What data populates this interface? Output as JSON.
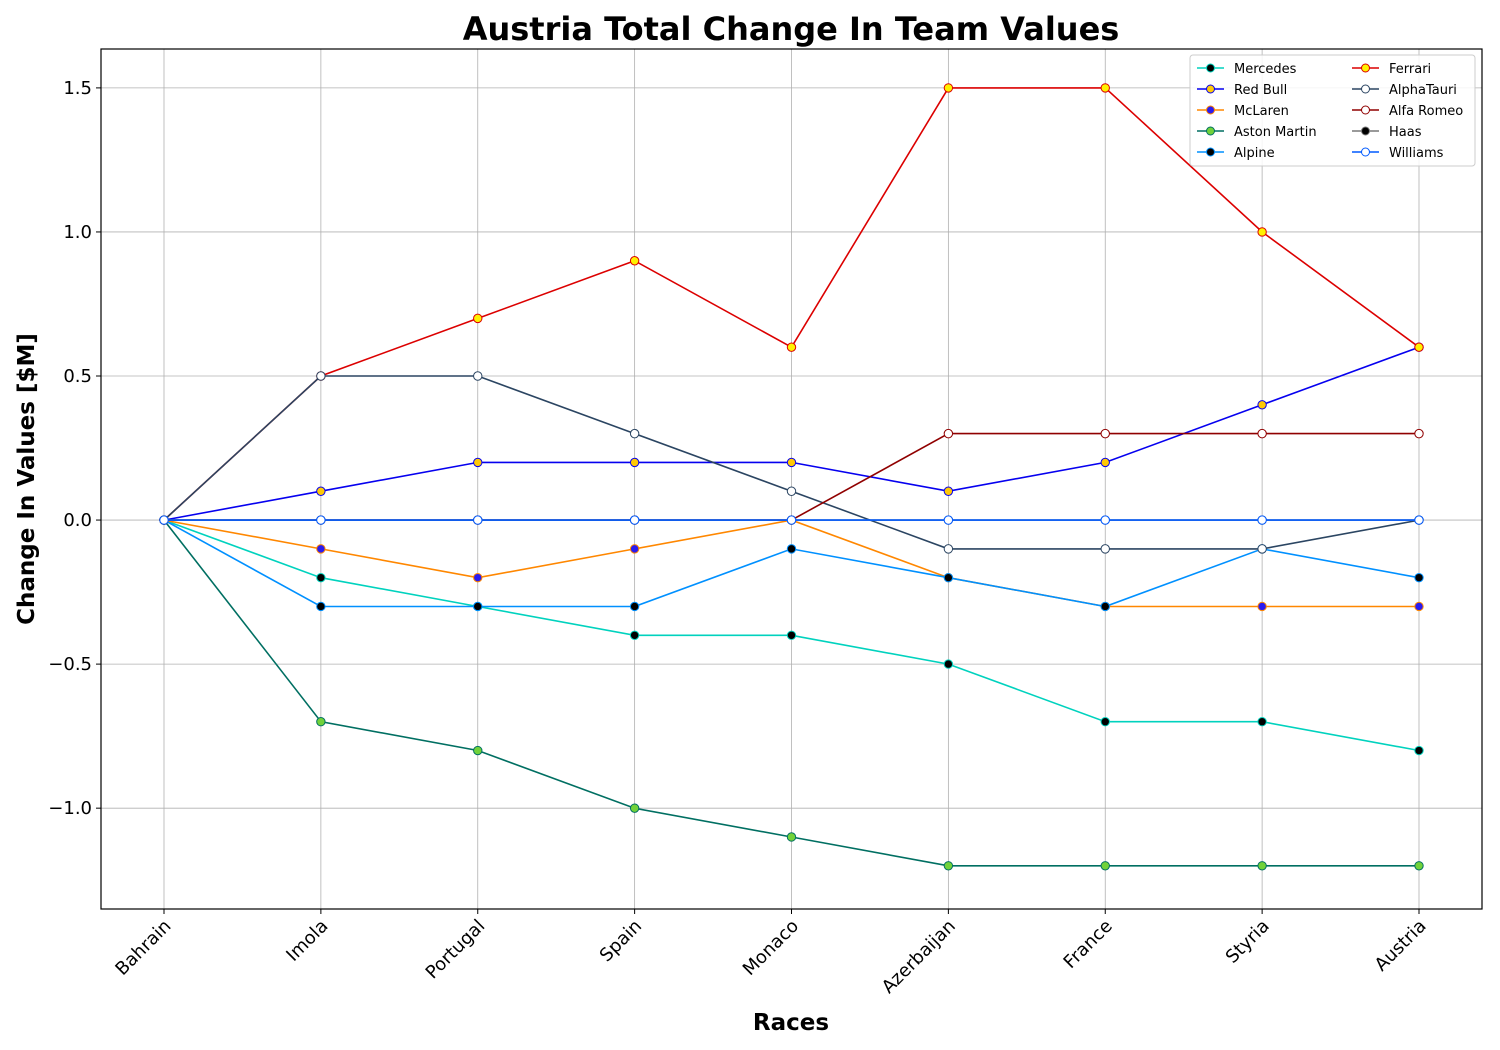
{
  "chart_data": {
    "type": "line",
    "title": "Austria Total Change In Team Values",
    "xlabel": "Races",
    "ylabel": "Change In Values [$M]",
    "categories": [
      "Bahrain",
      "Imola",
      "Portugal",
      "Spain",
      "Monaco",
      "Azerbaijan",
      "France",
      "Styria",
      "Austria"
    ],
    "ylim": [
      -1.35,
      1.635
    ],
    "yticks": [
      -1.0,
      -0.5,
      0.0,
      0.5,
      1.0,
      1.5
    ],
    "ytick_labels": [
      "−1.0",
      "−0.5",
      "0.0",
      "0.5",
      "1.0",
      "1.5"
    ],
    "grid": true,
    "legend_position": "top-right",
    "legend_columns": 2,
    "series": [
      {
        "name": "Mercedes",
        "color": "#00d2be",
        "marker_fill": "#000000",
        "marker_edge": "#00d2be",
        "values": [
          0,
          -0.2,
          -0.3,
          -0.4,
          -0.4,
          -0.5,
          -0.7,
          -0.7,
          -0.8
        ]
      },
      {
        "name": "Red Bull",
        "color": "#0600ef",
        "marker_fill": "#ffc906",
        "marker_edge": "#0600ef",
        "values": [
          0,
          0.1,
          0.2,
          0.2,
          0.2,
          0.1,
          0.2,
          0.4,
          0.6
        ]
      },
      {
        "name": "McLaren",
        "color": "#ff8700",
        "marker_fill": "#2a1bf0",
        "marker_edge": "#ff8700",
        "values": [
          0,
          -0.1,
          -0.2,
          -0.1,
          0.0,
          -0.2,
          -0.3,
          -0.3,
          -0.3
        ]
      },
      {
        "name": "Aston Martin",
        "color": "#006f62",
        "marker_fill": "#71d23a",
        "marker_edge": "#006f62",
        "values": [
          0,
          -0.7,
          -0.8,
          -1.0,
          -1.1,
          -1.2,
          -1.2,
          -1.2,
          -1.2
        ]
      },
      {
        "name": "Alpine",
        "color": "#0090ff",
        "marker_fill": "#000000",
        "marker_edge": "#0090ff",
        "values": [
          0,
          -0.3,
          -0.3,
          -0.3,
          -0.1,
          -0.2,
          -0.3,
          -0.1,
          -0.2
        ]
      },
      {
        "name": "Ferrari",
        "color": "#dc0000",
        "marker_fill": "#fff200",
        "marker_edge": "#dc0000",
        "values": [
          0,
          0.5,
          0.7,
          0.9,
          0.6,
          1.5,
          1.5,
          1.0,
          0.6
        ]
      },
      {
        "name": "AlphaTauri",
        "color": "#2b4562",
        "marker_fill": "#ffffff",
        "marker_edge": "#2b4562",
        "values": [
          0,
          0.5,
          0.5,
          0.3,
          0.1,
          -0.1,
          -0.1,
          -0.1,
          0.0
        ]
      },
      {
        "name": "Alfa Romeo",
        "color": "#900000",
        "marker_fill": "#ffffff",
        "marker_edge": "#900000",
        "values": [
          0,
          0,
          0,
          0,
          0,
          0.3,
          0.3,
          0.3,
          0.3
        ]
      },
      {
        "name": "Haas",
        "color": "#787878",
        "marker_fill": "#000000",
        "marker_edge": "#787878",
        "values": [
          0,
          0,
          0,
          0,
          0,
          0,
          0,
          0,
          0
        ]
      },
      {
        "name": "Williams",
        "color": "#005aff",
        "marker_fill": "#ffffff",
        "marker_edge": "#005aff",
        "values": [
          0,
          0,
          0,
          0,
          0,
          0,
          0,
          0,
          0
        ]
      }
    ]
  }
}
